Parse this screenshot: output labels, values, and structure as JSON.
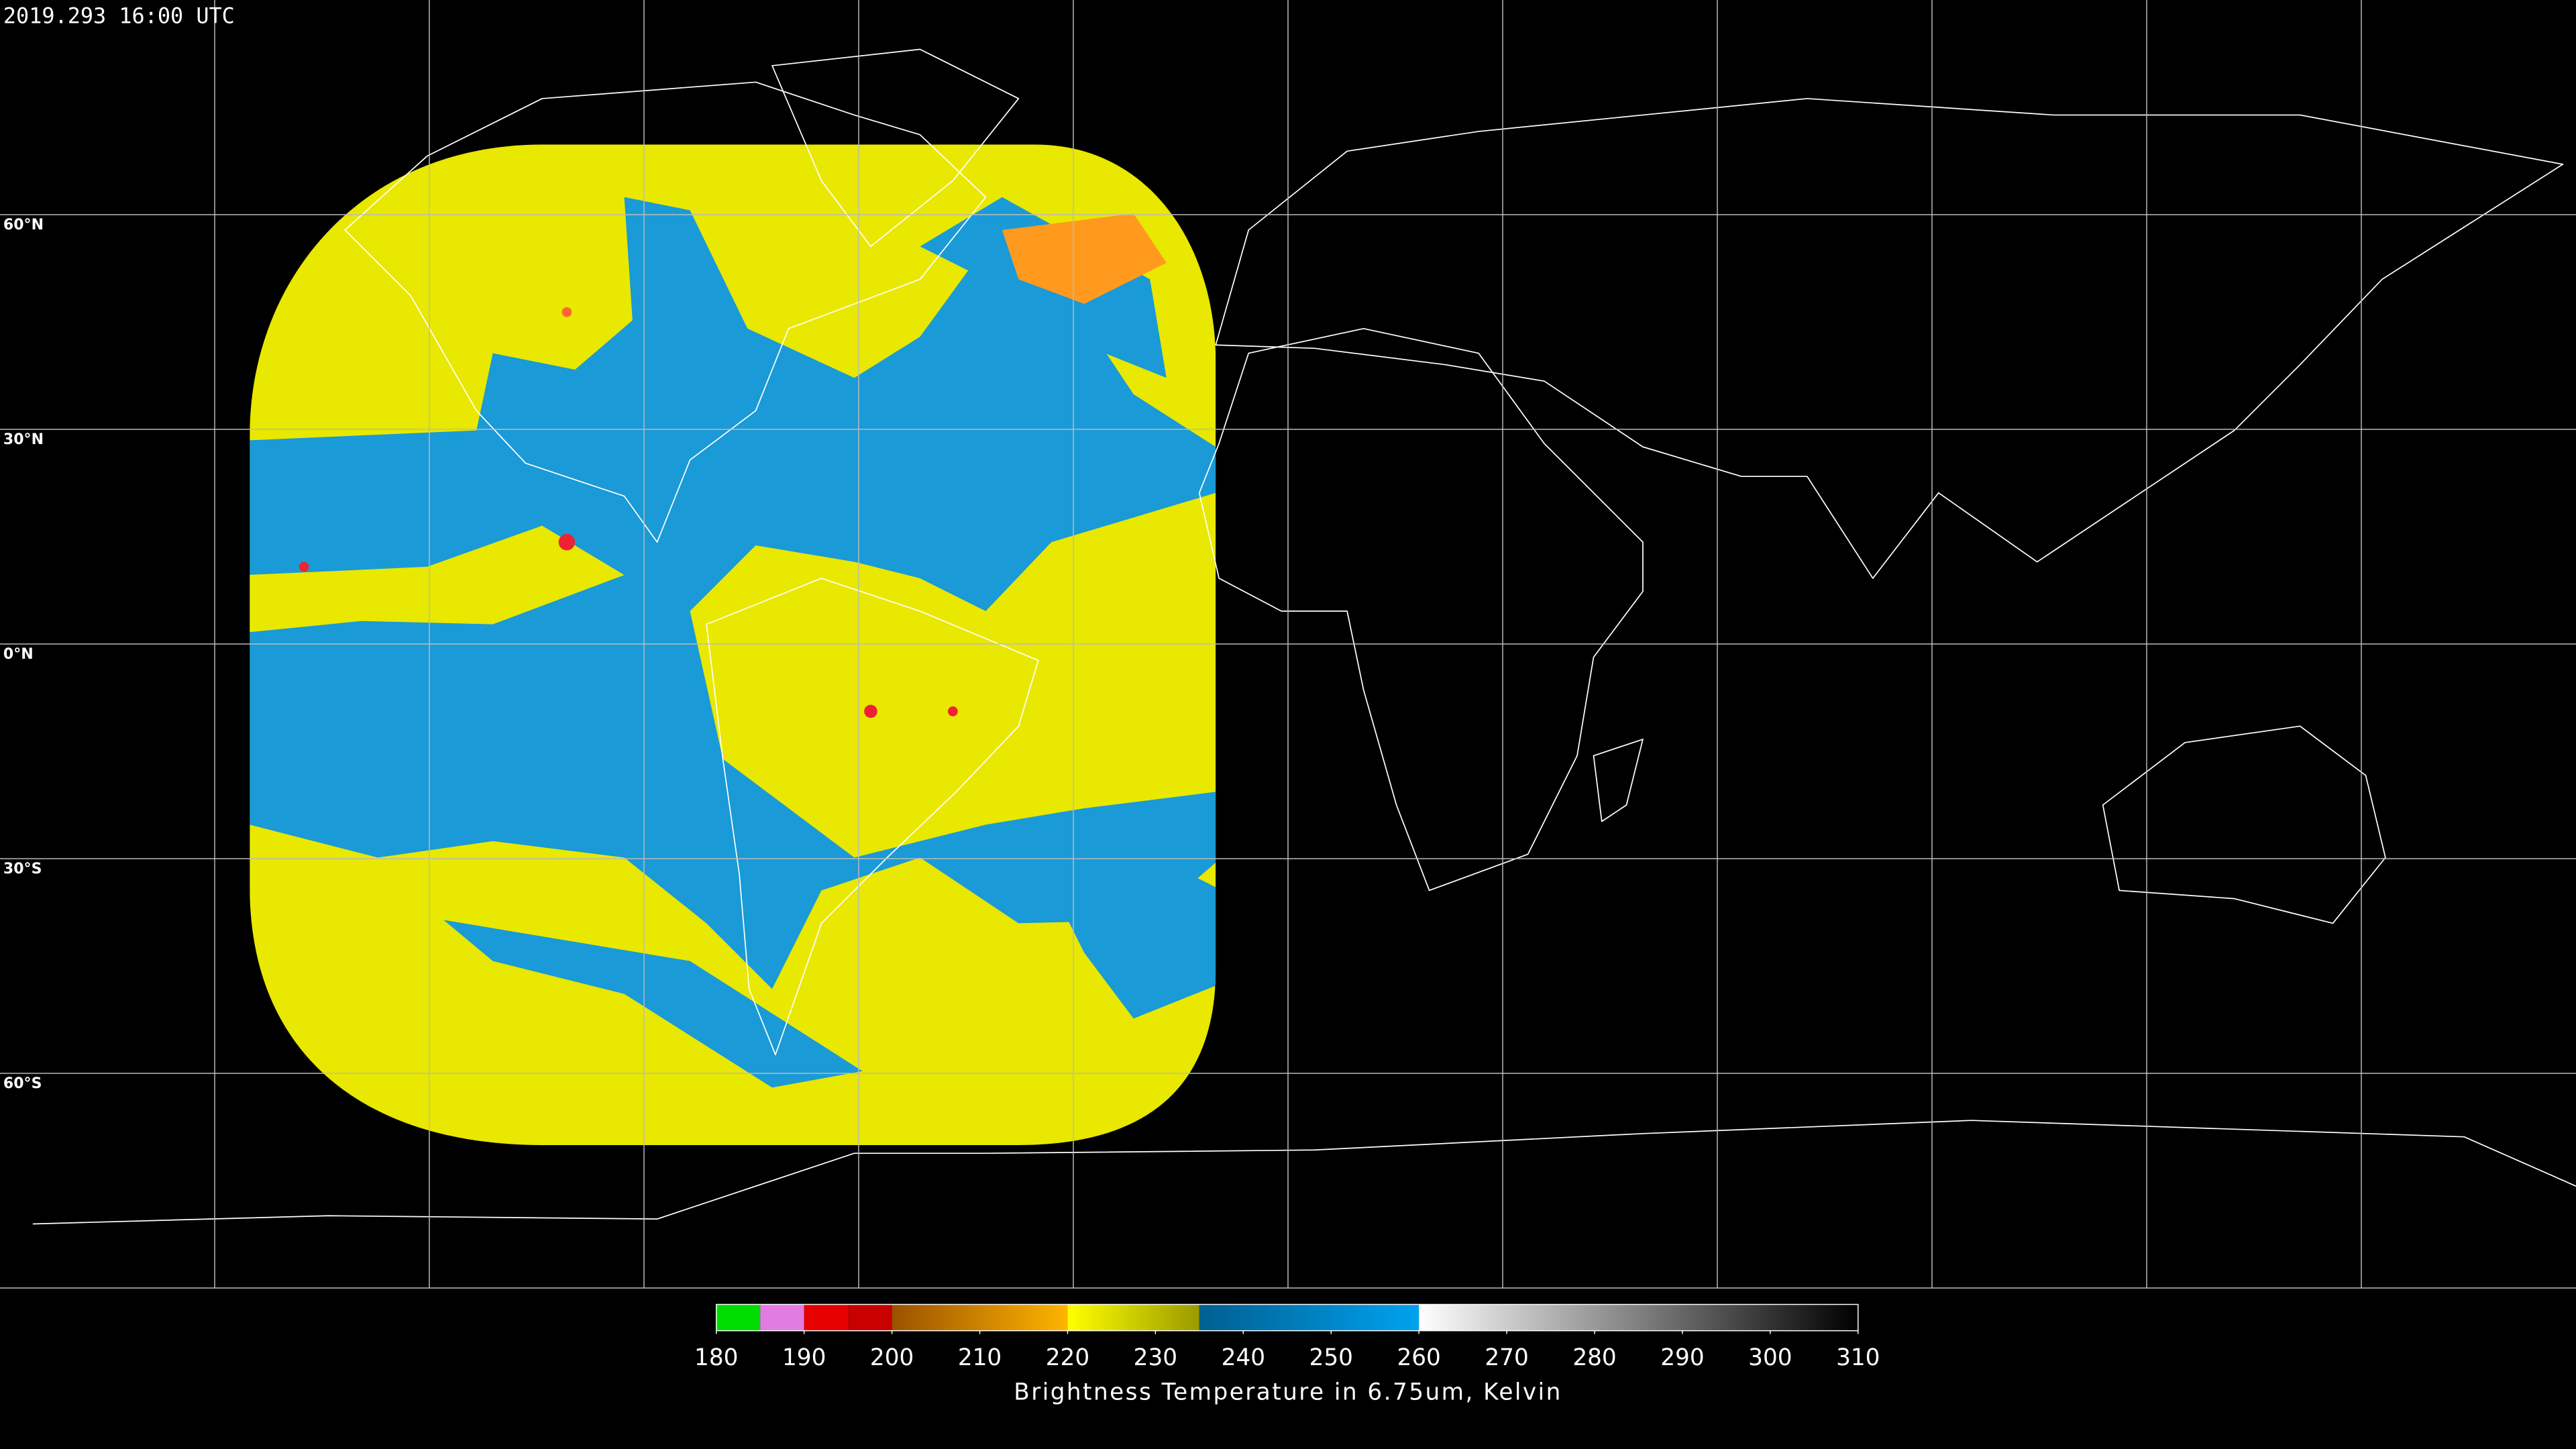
{
  "header": {
    "timestamp": "2019.293 16:00 UTC"
  },
  "map": {
    "lat_labels": [
      {
        "value": 60,
        "label": "60°N"
      },
      {
        "value": 30,
        "label": "30°N"
      },
      {
        "value": 0,
        "label": "0°N"
      },
      {
        "value": -30,
        "label": "30°S"
      },
      {
        "value": -60,
        "label": "60°S"
      }
    ]
  },
  "colorbar": {
    "title": "Brightness Temperature in 6.75um, Kelvin",
    "lim": [
      180,
      310
    ],
    "ticks": [
      180,
      190,
      200,
      210,
      220,
      230,
      240,
      250,
      260,
      270,
      280,
      290,
      300,
      310
    ],
    "segments": [
      {
        "range": [
          180,
          185
        ],
        "colors": [
          "#00dd00",
          "#00dd00"
        ]
      },
      {
        "range": [
          185,
          190
        ],
        "colors": [
          "#e27be2",
          "#e27be2"
        ]
      },
      {
        "range": [
          190,
          195
        ],
        "colors": [
          "#e60000",
          "#e60000"
        ]
      },
      {
        "range": [
          195,
          200
        ],
        "colors": [
          "#c80000",
          "#c80000"
        ]
      },
      {
        "range": [
          200,
          220
        ],
        "colors": [
          "#9a5200",
          "#ffb400"
        ]
      },
      {
        "range": [
          220,
          235
        ],
        "colors": [
          "#ffff00",
          "#9a9a00"
        ]
      },
      {
        "range": [
          235,
          260
        ],
        "colors": [
          "#005f90",
          "#00a2ef"
        ]
      },
      {
        "range": [
          260,
          310
        ],
        "colors": [
          "#ffffff",
          "#000000"
        ]
      }
    ]
  }
}
